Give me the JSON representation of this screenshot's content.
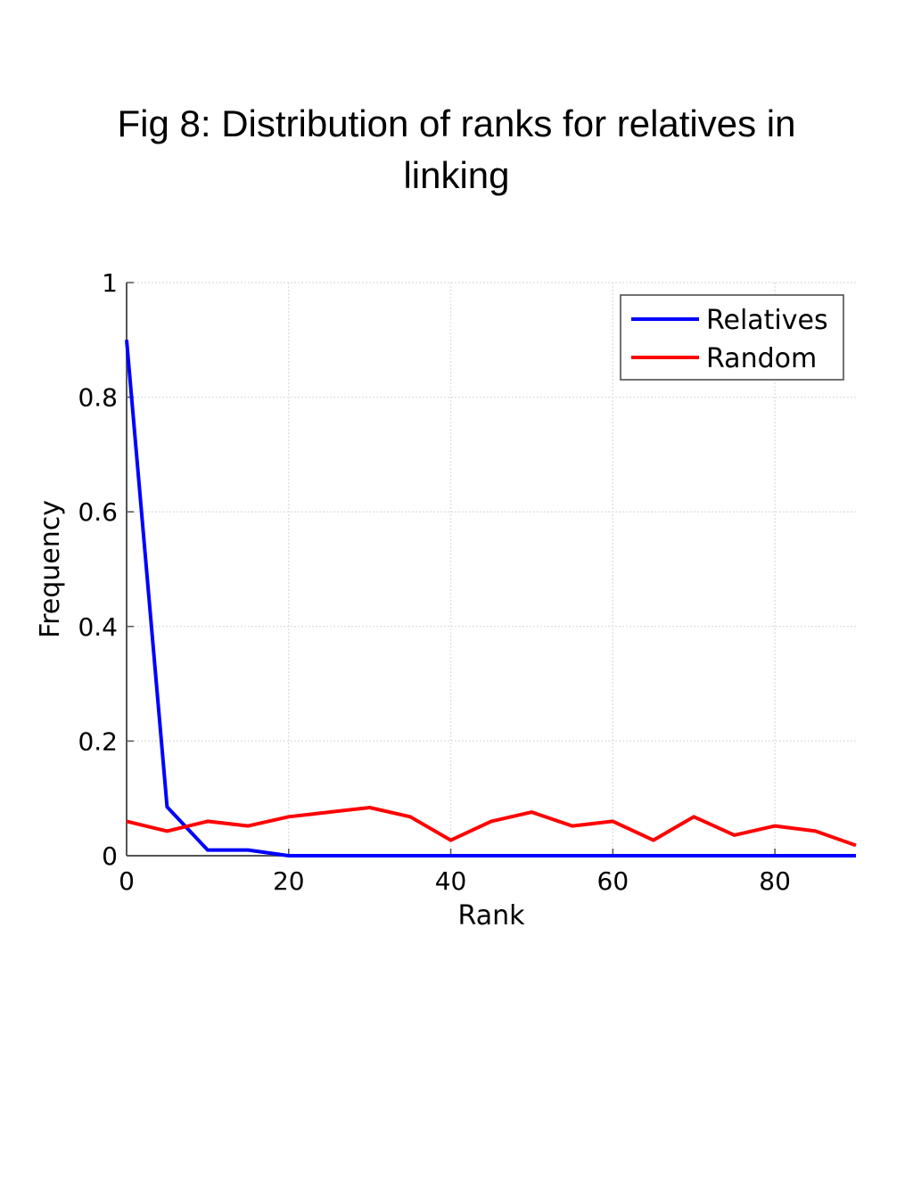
{
  "caption": {
    "line1": "Fig 8: Distribution of ranks for relatives in",
    "line2": "linking"
  },
  "chart_data": {
    "type": "line",
    "xlabel": "Rank",
    "ylabel": "Frequency",
    "xlim": [
      0,
      90
    ],
    "ylim": [
      0,
      1
    ],
    "x_ticks": [
      0,
      20,
      40,
      60,
      80
    ],
    "x_tick_labels": [
      "0",
      "20",
      "40",
      "60",
      "80"
    ],
    "y_ticks": [
      0,
      0.2,
      0.4,
      0.6,
      0.8,
      1
    ],
    "y_tick_labels": [
      "0",
      "0.2",
      "0.4",
      "0.6",
      "0.8",
      "1"
    ],
    "grid": true,
    "legend_position": "top-right",
    "x": [
      0,
      5,
      10,
      15,
      20,
      25,
      30,
      35,
      40,
      45,
      50,
      55,
      60,
      65,
      70,
      75,
      80,
      85,
      90
    ],
    "series": [
      {
        "name": "Relatives",
        "color": "#0000ff",
        "values": [
          0.9,
          0.085,
          0.01,
          0.01,
          0.0,
          0.0,
          0.0,
          0.0,
          0.0,
          0.0,
          0.0,
          0.0,
          0.0,
          0.0,
          0.0,
          0.0,
          0.0,
          0.0,
          0.0
        ]
      },
      {
        "name": "Random",
        "color": "#ff0000",
        "values": [
          0.06,
          0.043,
          0.06,
          0.052,
          0.068,
          0.076,
          0.084,
          0.068,
          0.027,
          0.06,
          0.076,
          0.052,
          0.06,
          0.027,
          0.068,
          0.036,
          0.052,
          0.043,
          0.018
        ]
      }
    ]
  }
}
